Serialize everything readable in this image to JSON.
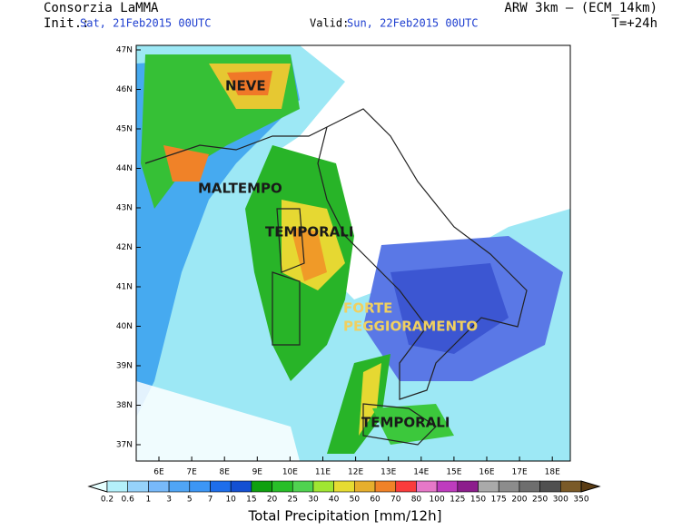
{
  "header": {
    "source": "Consorzia LaMMA",
    "init_label": "Init.:",
    "init_time": "Sat, 21Feb2015 00UTC",
    "valid_label": "Valid:",
    "valid_time": "Sun, 22Feb2015 00UTC",
    "model": "ARW 3km – (ECM_14km)",
    "lead": "T=+24h"
  },
  "map": {
    "lat_ticks": [
      "47N",
      "46N",
      "45N",
      "44N",
      "43N",
      "42N",
      "41N",
      "40N",
      "39N",
      "38N",
      "37N"
    ],
    "lon_ticks": [
      "6E",
      "7E",
      "8E",
      "9E",
      "10E",
      "11E",
      "12E",
      "13E",
      "14E",
      "15E",
      "16E",
      "17E",
      "18E"
    ],
    "annotations": [
      {
        "text": "NEVE",
        "color": "#1a1a1a"
      },
      {
        "text": "MALTEMPO",
        "color": "#1a1a1a"
      },
      {
        "text": "TEMPORALI",
        "color": "#1a1a1a"
      },
      {
        "text": "FORTE",
        "color": "#f0d060"
      },
      {
        "text": "PEGGIORAMENTO",
        "color": "#f0d060"
      },
      {
        "text": "TEMPORALI",
        "color": "#1a1a1a"
      }
    ]
  },
  "colorbar": {
    "labels": [
      "0.2",
      "0.6",
      "1",
      "3",
      "5",
      "7",
      "10",
      "15",
      "20",
      "25",
      "30",
      "40",
      "50",
      "60",
      "70",
      "80",
      "100",
      "125",
      "150",
      "175",
      "200",
      "250",
      "300",
      "350"
    ],
    "title": "Total Precipitation [mm/12h]"
  }
}
